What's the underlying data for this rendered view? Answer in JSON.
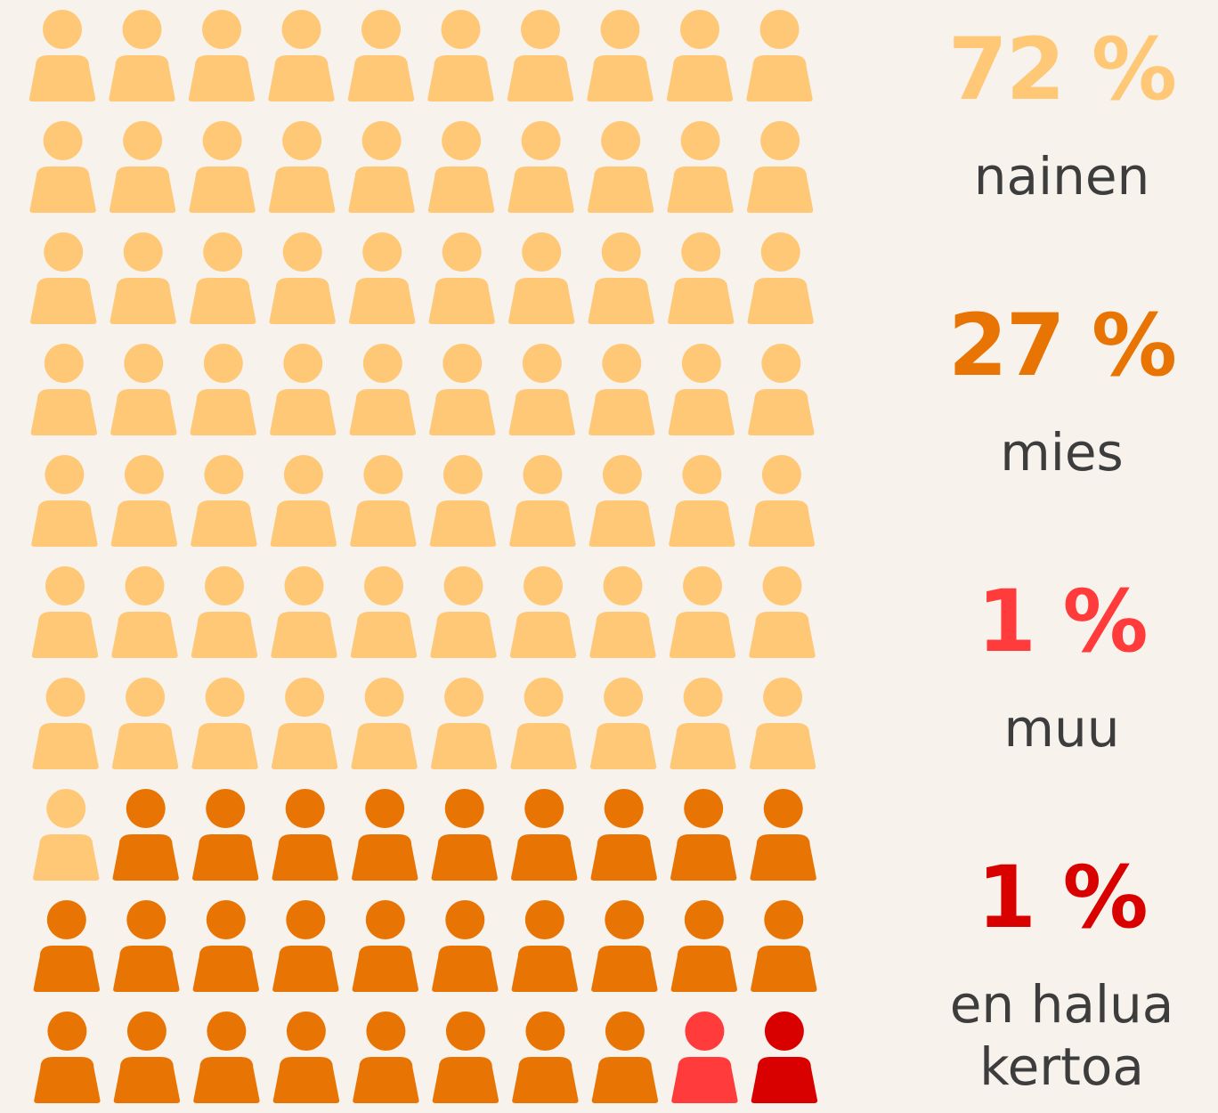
{
  "chart_data": {
    "type": "pictogram",
    "categories": [
      "nainen",
      "mies",
      "muu",
      "en halua kertoa"
    ],
    "values": [
      72,
      27,
      1,
      1
    ],
    "value_labels": [
      "72 %",
      "27 %",
      "1 %",
      "1 %"
    ],
    "colors": [
      "#fec877",
      "#e87503",
      "#ff3b3b",
      "#d90000"
    ]
  }
}
